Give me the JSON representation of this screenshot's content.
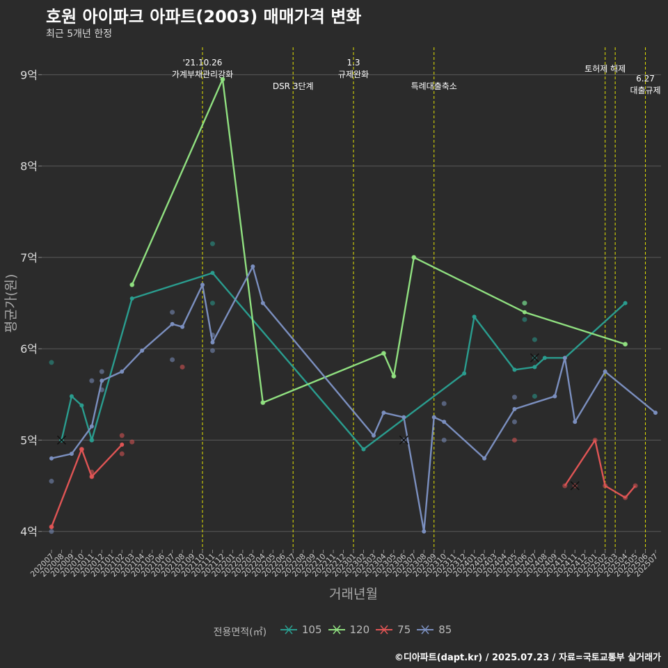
{
  "title": "호원 아이파크 아파트(2003) 매매가격 변화",
  "subtitle": "최근 5개년 한정",
  "footer": "©디아파트(dapt.kr) / 2025.07.23 / 자료=국토교통부 실거래가",
  "chart_data": {
    "type": "line",
    "title": "호원 아이파크 아파트(2003) 매매가격 변화",
    "subtitle": "최근 5개년 한정",
    "xlabel": "거래년월",
    "ylabel": "평균가(원)",
    "ylim": [
      3.8,
      9.3
    ],
    "yticks": [
      4,
      5,
      6,
      7,
      8,
      9
    ],
    "ytick_labels": [
      "4억",
      "5억",
      "6억",
      "7억",
      "8억",
      "9억"
    ],
    "grid": true,
    "legend_title": "전용면적(㎡)",
    "legend_position": "bottom",
    "categories": [
      "202007",
      "202008",
      "202009",
      "202010",
      "202011",
      "202012",
      "202101",
      "202102",
      "202103",
      "202104",
      "202105",
      "202106",
      "202107",
      "202108",
      "202109",
      "202110",
      "202111",
      "202112",
      "202201",
      "202202",
      "202203",
      "202204",
      "202205",
      "202206",
      "202207",
      "202208",
      "202209",
      "202210",
      "202211",
      "202212",
      "202301",
      "202302",
      "202303",
      "202304",
      "202305",
      "202306",
      "202307",
      "202308",
      "202309",
      "202310",
      "202311",
      "202312",
      "202401",
      "202402",
      "202403",
      "202404",
      "202405",
      "202406",
      "202407",
      "202408",
      "202409",
      "202410",
      "202411",
      "202412",
      "202501",
      "202502",
      "202503",
      "202504",
      "202505",
      "202506",
      "202507"
    ],
    "series": [
      {
        "name": "105",
        "color": "#2a9d8f",
        "line": [
          [
            "202008",
            5.0
          ],
          [
            "202009",
            5.48
          ],
          [
            "202010",
            5.38
          ],
          [
            "202011",
            5.0
          ],
          [
            "202103",
            6.55
          ],
          [
            "202111",
            6.83
          ],
          [
            "202302",
            4.9
          ],
          [
            "202312",
            5.73
          ],
          [
            "202401",
            6.35
          ],
          [
            "202405",
            5.77
          ],
          [
            "202407",
            5.8
          ],
          [
            "202408",
            5.9
          ],
          [
            "202410",
            5.9
          ],
          [
            "202504",
            6.5
          ]
        ],
        "points": [
          [
            "202007",
            5.85
          ],
          [
            "202008",
            5.0
          ],
          [
            "202011",
            5.0
          ],
          [
            "202111",
            7.15
          ],
          [
            "202111",
            6.5
          ],
          [
            "202406",
            6.5
          ],
          [
            "202406",
            6.32
          ],
          [
            "202407",
            6.1
          ],
          [
            "202407",
            5.9
          ],
          [
            "202407",
            5.48
          ]
        ],
        "cancelled": [
          [
            "202008",
            5.0
          ],
          [
            "202407",
            5.9
          ]
        ]
      },
      {
        "name": "120",
        "color": "#90e080",
        "line": [
          [
            "202103",
            6.7
          ],
          [
            "202112",
            8.95
          ],
          [
            "202204",
            5.41
          ],
          [
            "202304",
            5.95
          ],
          [
            "202305",
            5.7
          ],
          [
            "202307",
            7.0
          ],
          [
            "202406",
            6.4
          ],
          [
            "202504",
            6.05
          ]
        ],
        "points": [
          [
            "202103",
            6.7
          ],
          [
            "202112",
            8.95
          ],
          [
            "202204",
            5.41
          ],
          [
            "202304",
            5.95
          ],
          [
            "202305",
            5.7
          ],
          [
            "202307",
            7.0
          ],
          [
            "202406",
            6.5
          ],
          [
            "202504",
            6.05
          ]
        ],
        "cancelled": []
      },
      {
        "name": "75",
        "color": "#e05555",
        "line": [
          [
            "202007",
            4.05
          ],
          [
            "202010",
            4.9
          ],
          [
            "202011",
            4.6
          ],
          [
            "202102",
            4.95
          ]
        ],
        "points": [
          [
            "202007",
            4.05
          ],
          [
            "202010",
            4.9
          ],
          [
            "202011",
            4.65
          ],
          [
            "202011",
            4.6
          ],
          [
            "202102",
            5.05
          ],
          [
            "202102",
            4.85
          ],
          [
            "202103",
            4.98
          ],
          [
            "202108",
            5.8
          ],
          [
            "202405",
            5.0
          ],
          [
            "202410",
            4.5
          ],
          [
            "202411",
            4.5
          ],
          [
            "202501",
            5.0
          ],
          [
            "202502",
            4.5
          ],
          [
            "202504",
            4.37
          ],
          [
            "202505",
            4.5
          ]
        ],
        "line2": [
          [
            "202410",
            4.5
          ],
          [
            "202501",
            5.0
          ],
          [
            "202502",
            4.5
          ],
          [
            "202504",
            4.37
          ],
          [
            "202505",
            4.5
          ]
        ],
        "cancelled": [
          [
            "202411",
            4.5
          ]
        ]
      },
      {
        "name": "85",
        "color": "#7b8fbf",
        "line": [
          [
            "202007",
            4.8
          ],
          [
            "202009",
            4.85
          ],
          [
            "202011",
            5.15
          ],
          [
            "202012",
            5.65
          ],
          [
            "202102",
            5.75
          ],
          [
            "202104",
            5.98
          ],
          [
            "202107",
            6.27
          ],
          [
            "202108",
            6.24
          ],
          [
            "202110",
            6.7
          ],
          [
            "202111",
            6.07
          ],
          [
            "202203",
            6.9
          ],
          [
            "202204",
            6.5
          ],
          [
            "202303",
            5.05
          ],
          [
            "202304",
            5.3
          ],
          [
            "202306",
            5.25
          ],
          [
            "202308",
            4.0
          ],
          [
            "202309",
            5.25
          ],
          [
            "202310",
            5.2
          ],
          [
            "202402",
            4.8
          ],
          [
            "202405",
            5.34
          ],
          [
            "202409",
            5.48
          ],
          [
            "202410",
            5.9
          ],
          [
            "202411",
            5.2
          ],
          [
            "202502",
            5.75
          ],
          [
            "202507",
            5.3
          ]
        ],
        "points": [
          [
            "202007",
            4.55
          ],
          [
            "202007",
            4.0
          ],
          [
            "202011",
            5.65
          ],
          [
            "202012",
            5.75
          ],
          [
            "202012",
            5.55
          ],
          [
            "202107",
            6.4
          ],
          [
            "202107",
            5.88
          ],
          [
            "202111",
            5.98
          ],
          [
            "202111",
            6.15
          ],
          [
            "202306",
            5.0
          ],
          [
            "202310",
            5.4
          ],
          [
            "202310",
            5.0
          ],
          [
            "202405",
            5.47
          ],
          [
            "202405",
            5.2
          ]
        ],
        "cancelled": [
          [
            "202306",
            5.0
          ]
        ]
      }
    ],
    "events": [
      {
        "date": "202110",
        "label_lines": [
          "'21.10.26",
          "가계부채관리강화"
        ]
      },
      {
        "date": "202207",
        "label_lines": [
          "DSR 3단계"
        ]
      },
      {
        "date": "202301",
        "label_lines": [
          "1.3",
          "규제완화"
        ]
      },
      {
        "date": "202309",
        "label_lines": [
          "특례대출축소"
        ]
      },
      {
        "date": "202502",
        "label_lines": [
          "토허제 해제"
        ]
      },
      {
        "date": "202503",
        "label_lines": []
      },
      {
        "date": "202506",
        "label_lines": [
          "6.27",
          "대출규제"
        ]
      }
    ]
  }
}
